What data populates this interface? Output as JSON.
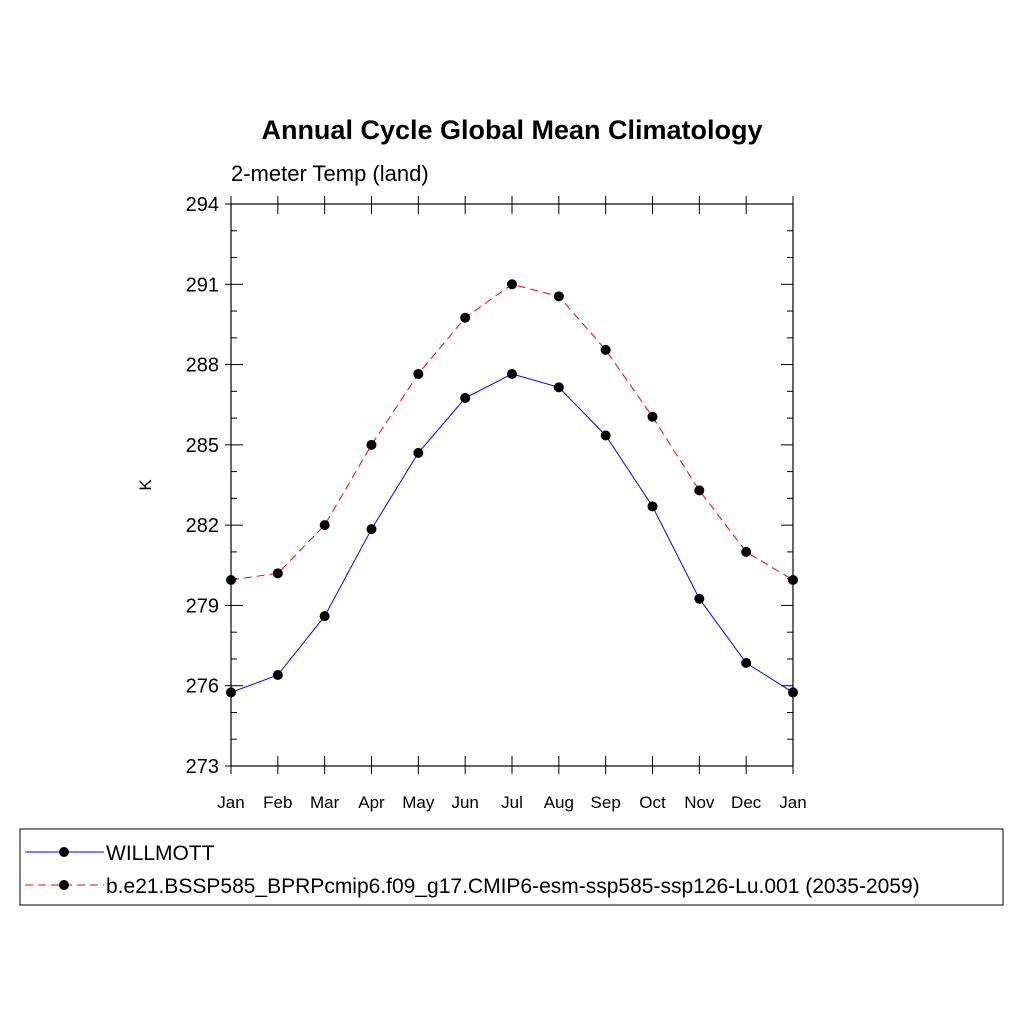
{
  "chart_data": {
    "type": "line",
    "title": "Annual Cycle Global Mean Climatology",
    "subtitle": "2-meter Temp (land)",
    "xlabel": "",
    "ylabel": "K",
    "categories": [
      "Jan",
      "Feb",
      "Mar",
      "Apr",
      "May",
      "Jun",
      "Jul",
      "Aug",
      "Sep",
      "Oct",
      "Nov",
      "Dec",
      "Jan"
    ],
    "ylim": [
      273,
      294
    ],
    "yticks": [
      "273",
      "276",
      "279",
      "282",
      "285",
      "288",
      "291",
      "294"
    ],
    "grid": false,
    "legend_position": "bottom",
    "series": [
      {
        "name": "WILLMOTT",
        "color": "#0000ff",
        "dash": "solid",
        "marker": "circle",
        "values": [
          275.75,
          276.4,
          278.6,
          281.85,
          284.7,
          286.75,
          287.65,
          287.15,
          285.35,
          282.7,
          279.25,
          276.85,
          275.75
        ]
      },
      {
        "name": "b.e21.BSSP585_BPRPcmip6.f09_g17.CMIP6-esm-ssp585-ssp126-Lu.001 (2035-2059)",
        "color": "#ff0000",
        "dash": "dashed",
        "marker": "circle",
        "values": [
          279.95,
          280.2,
          282.0,
          285.0,
          287.65,
          289.75,
          291.0,
          290.55,
          288.55,
          286.05,
          283.3,
          281.0,
          279.95
        ]
      }
    ]
  }
}
